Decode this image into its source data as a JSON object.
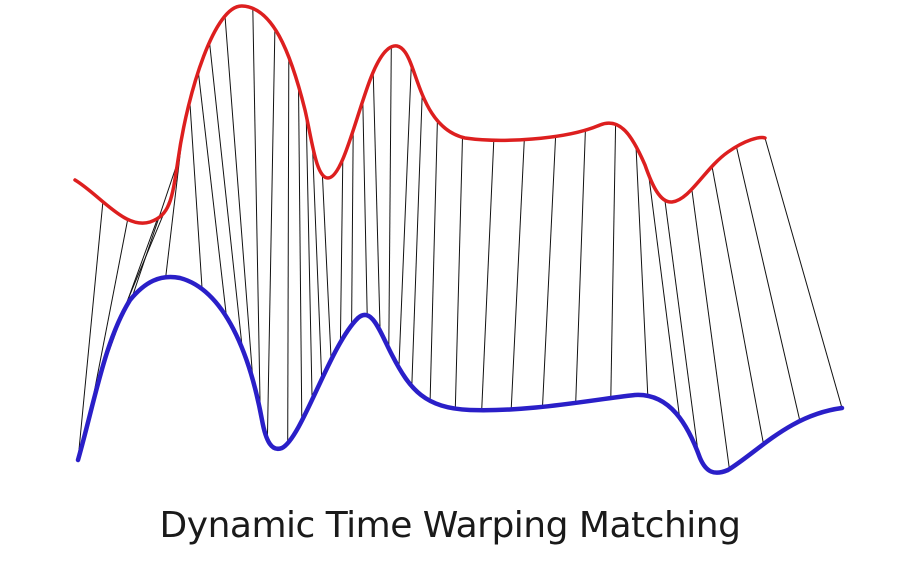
{
  "caption": "Dynamic Time Warping Matching",
  "colors": {
    "series_a": "#dd1f1f",
    "series_b": "#2a1fc8",
    "connectors": "#111111",
    "caption": "#1a1a1a",
    "background": "#ffffff"
  },
  "diagram": {
    "kind": "two-curve alignment with connector lines",
    "series": [
      {
        "id": "series_a",
        "color_key": "series_a"
      },
      {
        "id": "series_b",
        "color_key": "series_b"
      }
    ],
    "connector_count": 38
  }
}
